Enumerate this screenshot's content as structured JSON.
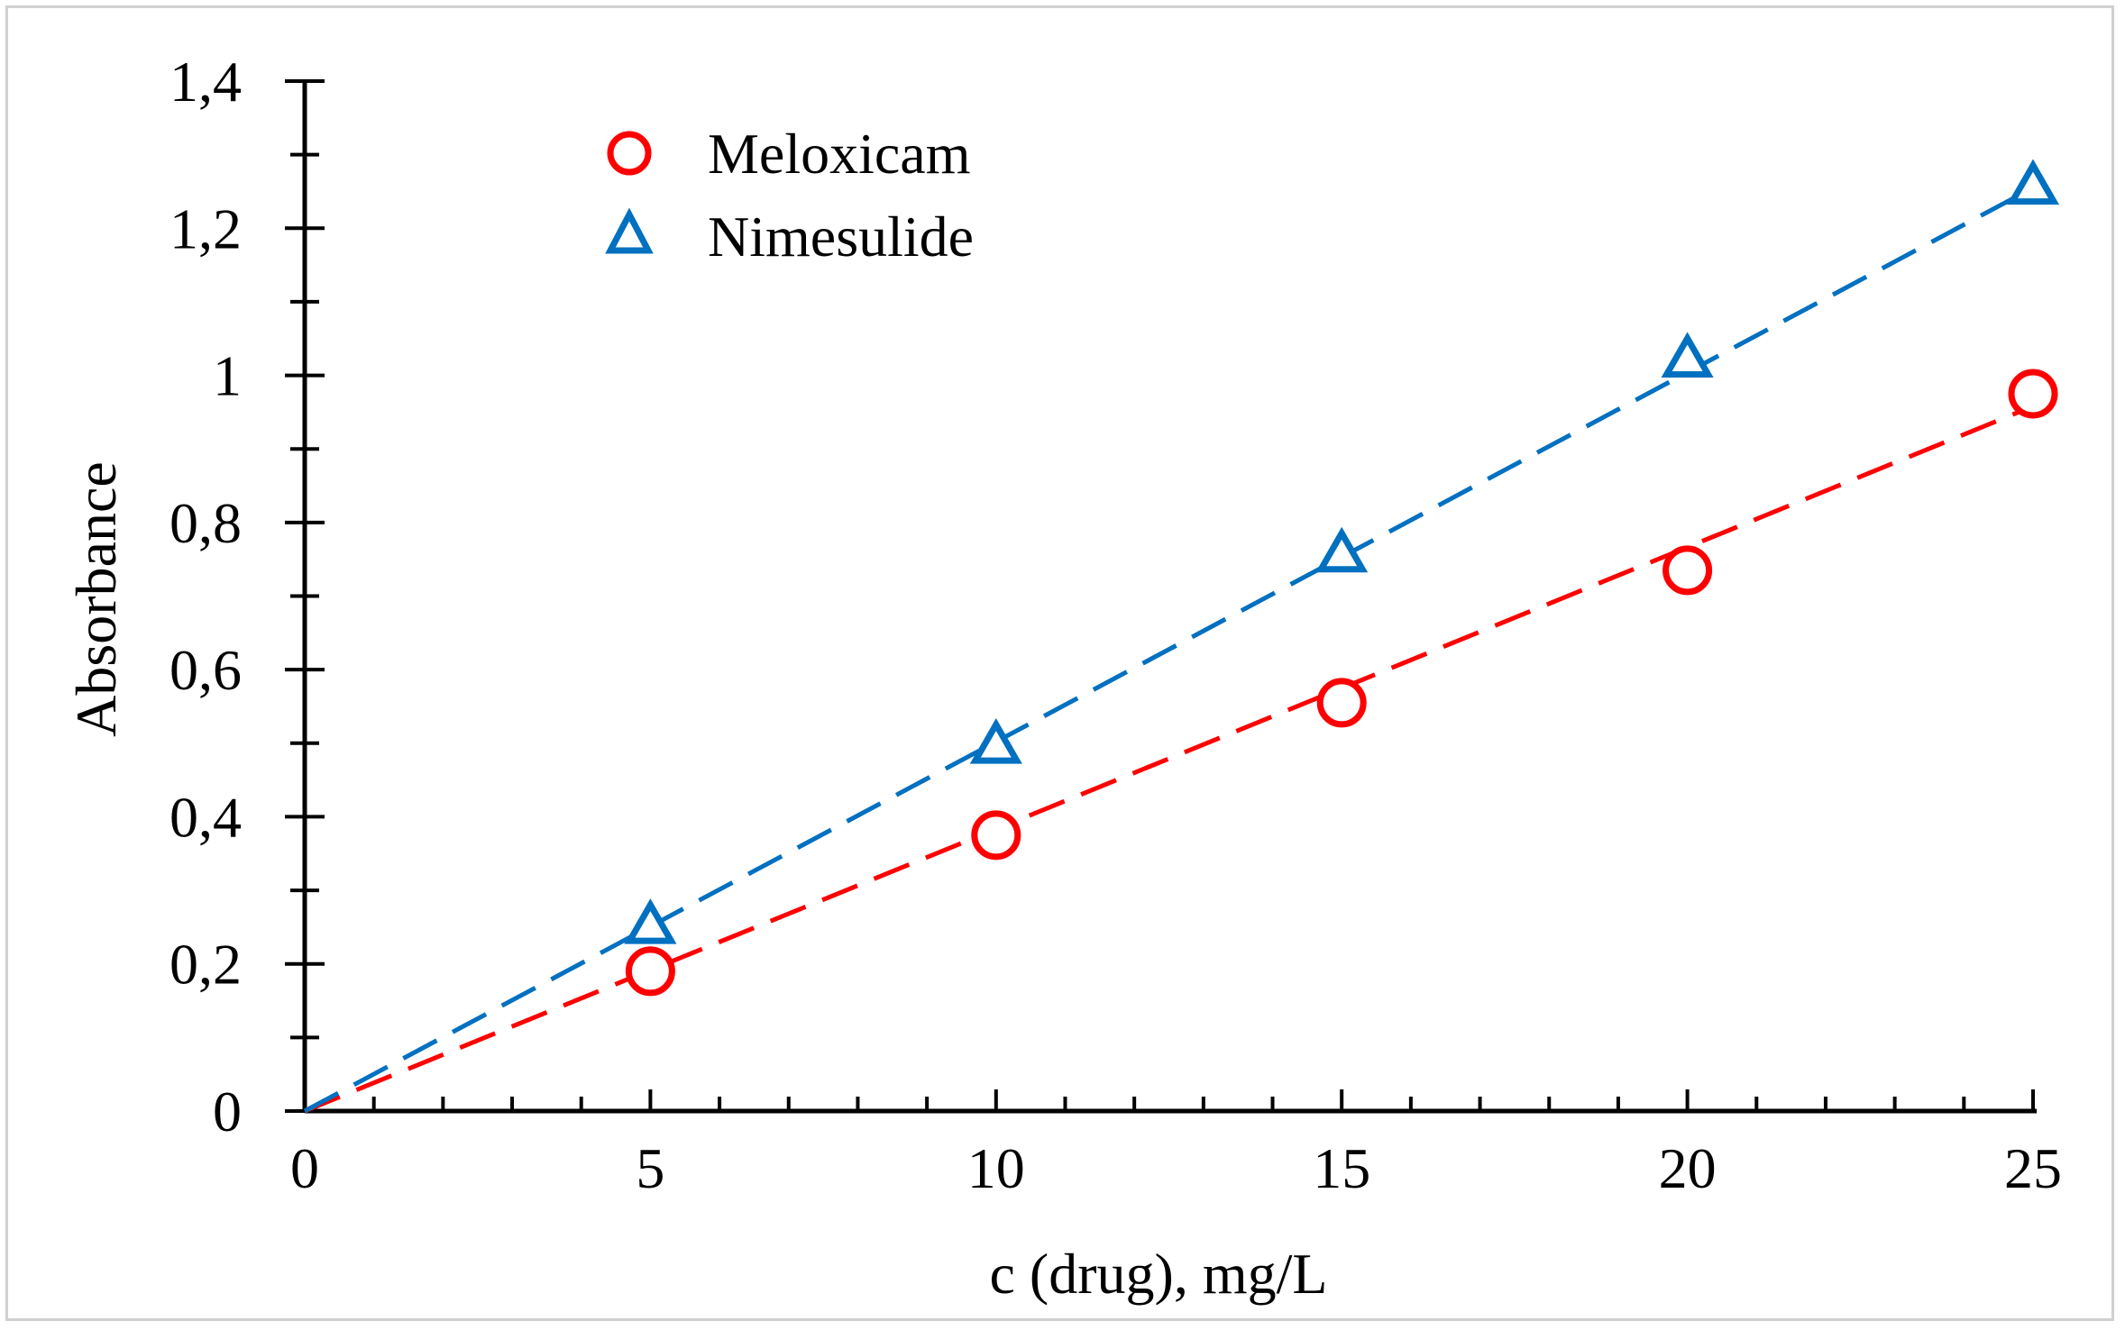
{
  "chart_data": {
    "type": "scatter",
    "title": "",
    "xlabel": "c (drug), mg/L",
    "ylabel": "Absorbance",
    "xlim": [
      0,
      25
    ],
    "ylim": [
      0,
      1.4
    ],
    "x_major_ticks": [
      0,
      5,
      10,
      15,
      20,
      25
    ],
    "x_tick_labels": [
      "0",
      "5",
      "10",
      "15",
      "20",
      "25"
    ],
    "x_minor_step": 1,
    "y_major_ticks": [
      0,
      0.2,
      0.4,
      0.6,
      0.8,
      1.0,
      1.2,
      1.4
    ],
    "y_tick_labels": [
      "0",
      "0,2",
      "0,4",
      "0,6",
      "0,8",
      "1",
      "1,2",
      "1,4"
    ],
    "y_minor_step": 0.1,
    "grid": false,
    "legend_position": "top-left",
    "series": [
      {
        "name": "Meloxicam",
        "marker": "circle",
        "color": "#ff0000",
        "x": [
          5,
          10,
          15,
          20,
          25
        ],
        "y": [
          0.19,
          0.375,
          0.555,
          0.735,
          0.975
        ],
        "trendline": {
          "style": "dashed",
          "x": [
            0,
            25
          ],
          "y": [
            -0.012,
            0.958
          ]
        }
      },
      {
        "name": "Nimesulide",
        "marker": "triangle",
        "color": "#0070c0",
        "x": [
          5,
          10,
          15,
          20,
          25
        ],
        "y": [
          0.25,
          0.495,
          0.755,
          1.02,
          1.255
        ],
        "trendline": {
          "style": "dashed",
          "x": [
            0,
            25
          ],
          "y": [
            0.0,
            1.255
          ]
        }
      }
    ]
  }
}
